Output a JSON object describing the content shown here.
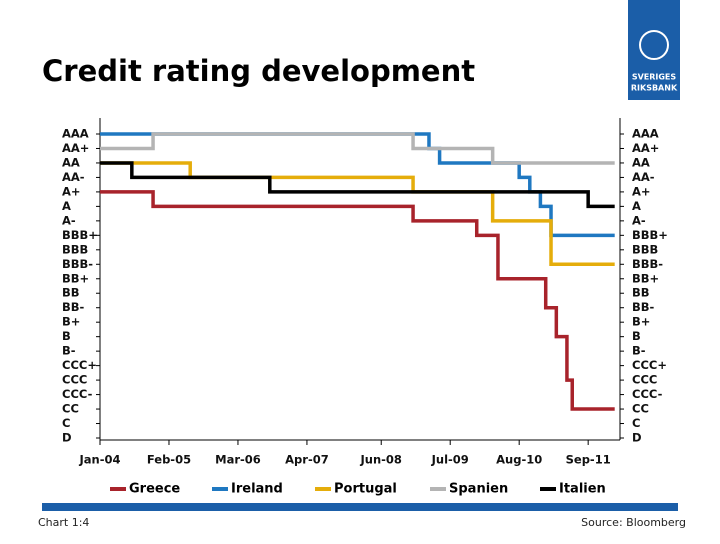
{
  "chart_data": {
    "type": "step",
    "title": "Credit rating development",
    "xlim": [
      "Jan-04",
      "Mar-12"
    ],
    "xticks": [
      "Jan-04",
      "Feb-05",
      "Mar-06",
      "Apr-07",
      "Jun-08",
      "Jul-09",
      "Aug-10",
      "Sep-11"
    ],
    "ylim": [
      0,
      21
    ],
    "yticks": [
      {
        "value": 21,
        "label": "AAA"
      },
      {
        "value": 20,
        "label": "AA+"
      },
      {
        "value": 19,
        "label": "AA"
      },
      {
        "value": 18,
        "label": "AA-"
      },
      {
        "value": 17,
        "label": "A+"
      },
      {
        "value": 16,
        "label": "A"
      },
      {
        "value": 15,
        "label": "A-"
      },
      {
        "value": 14,
        "label": "BBB+"
      },
      {
        "value": 13,
        "label": "BBB"
      },
      {
        "value": 12,
        "label": "BBB-"
      },
      {
        "value": 11,
        "label": "BB+"
      },
      {
        "value": 10,
        "label": "BB"
      },
      {
        "value": 9,
        "label": "BB-"
      },
      {
        "value": 8,
        "label": "B+"
      },
      {
        "value": 7,
        "label": "B"
      },
      {
        "value": 6,
        "label": "B-"
      },
      {
        "value": 5,
        "label": "CCC+"
      },
      {
        "value": 4,
        "label": "CCC"
      },
      {
        "value": 3,
        "label": "CCC-"
      },
      {
        "value": 2,
        "label": "CC"
      },
      {
        "value": 1,
        "label": "C"
      },
      {
        "value": 0,
        "label": "D"
      }
    ],
    "series": [
      {
        "name": "Greece",
        "color": "#a8232b",
        "x": [
          "Jan-04",
          "Nov-04",
          "Dec-08",
          "Dec-09",
          "Apr-10",
          "Jan-11",
          "Mar-11",
          "May-11",
          "Jun-11",
          "Feb-12"
        ],
        "values": [
          17,
          16,
          15,
          14,
          11,
          9,
          7,
          4,
          2,
          2
        ]
      },
      {
        "name": "Ireland",
        "color": "#1f78c1",
        "x": [
          "Jan-04",
          "Mar-09",
          "May-09",
          "Aug-10",
          "Oct-10",
          "Dec-10",
          "Feb-11",
          "Feb-12"
        ],
        "values": [
          21,
          20,
          19,
          18,
          17,
          16,
          14,
          14
        ]
      },
      {
        "name": "Portugal",
        "color": "#e5ad0b",
        "x": [
          "Jan-04",
          "Jun-05",
          "Dec-08",
          "Mar-10",
          "Feb-11",
          "Feb-12"
        ],
        "values": [
          19,
          18,
          17,
          15,
          12,
          12
        ]
      },
      {
        "name": "Spanien",
        "color": "#b4b4b4",
        "x": [
          "Jan-04",
          "Nov-04",
          "Dec-08",
          "Mar-10",
          "Feb-12"
        ],
        "values": [
          20,
          21,
          20,
          19,
          19
        ]
      },
      {
        "name": "Italien",
        "color": "#000000",
        "x": [
          "Jan-04",
          "Jul-04",
          "Sep-06",
          "Sep-11",
          "Feb-12"
        ],
        "values": [
          19,
          18,
          17,
          16,
          16
        ]
      }
    ]
  },
  "logo": {
    "line1": "SVERIGES",
    "line2": "RIKSBANK"
  },
  "footer": {
    "chart_number": "Chart 1:4",
    "source": "Source: Bloomberg"
  }
}
